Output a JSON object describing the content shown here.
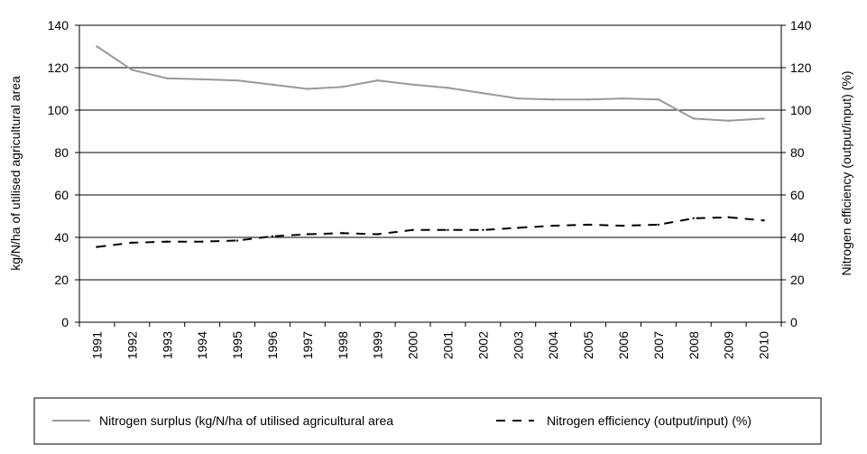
{
  "chart_data": {
    "type": "line",
    "x": [
      "1991",
      "1992",
      "1993",
      "1994",
      "1995",
      "1996",
      "1997",
      "1998",
      "1999",
      "2000",
      "2001",
      "2002",
      "2003",
      "2004",
      "2005",
      "2006",
      "2007",
      "2008",
      "2009",
      "2010"
    ],
    "ylabel_left": "kg/N/ha of utilised agricultural area",
    "ylabel_right": "Nitrogen efficiency (output/input) (%)",
    "ylim_left": [
      0,
      140
    ],
    "ylim_right": [
      0,
      140
    ],
    "yticks": [
      0,
      20,
      40,
      60,
      80,
      100,
      120,
      140
    ],
    "grid": "horizontal",
    "legend_position": "bottom",
    "series": [
      {
        "name": "Nitrogen surplus (kg/N/ha of utilised agricultural area",
        "axis": "left",
        "style": "solid",
        "color": "#999999",
        "values": [
          130,
          119,
          115,
          114.5,
          114,
          112,
          110,
          111,
          114,
          112,
          110.5,
          108,
          105.5,
          105,
          105,
          105.5,
          105,
          96,
          95,
          96
        ]
      },
      {
        "name": "Nitrogen efficiency (output/input) (%)",
        "axis": "right",
        "style": "dashed",
        "color": "#000000",
        "values": [
          35.5,
          37.5,
          38,
          38,
          38.5,
          40.5,
          41.5,
          42,
          41.5,
          43.5,
          43.5,
          43.5,
          44.5,
          45.5,
          46,
          45.5,
          46,
          49,
          49.5,
          48
        ]
      }
    ]
  }
}
